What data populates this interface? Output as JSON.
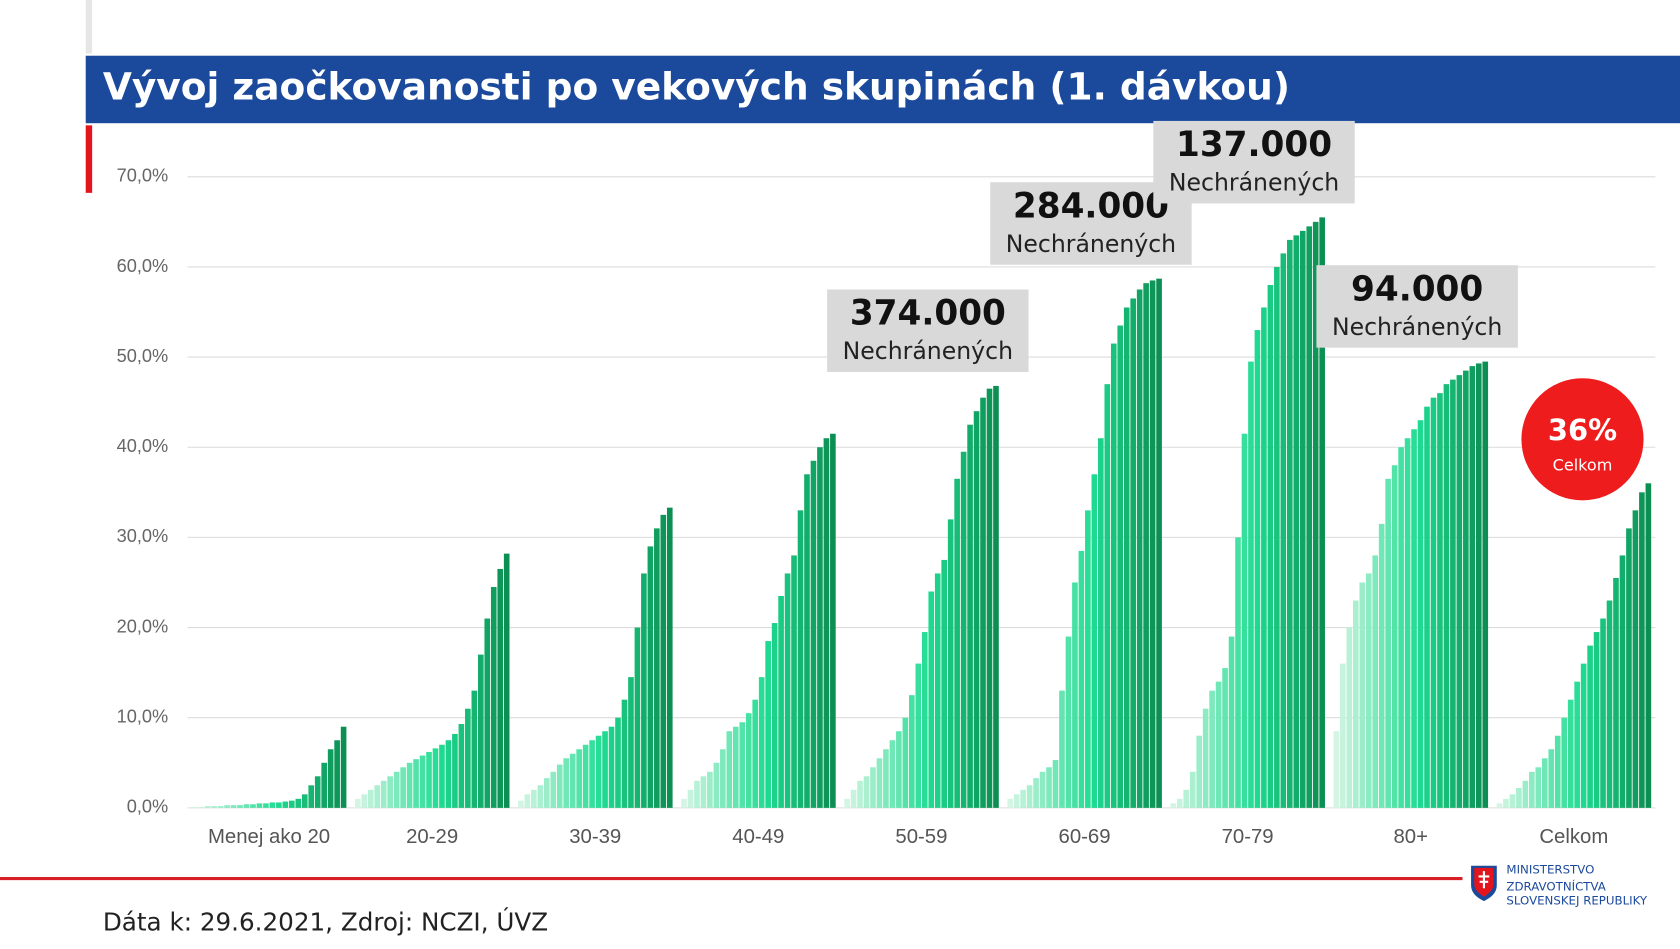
{
  "chart_data": {
    "type": "bar",
    "title": "Vývoj zaočkovanosti po vekových skupinách (1. dávkou)",
    "categories": [
      "Menej ako 20",
      "20-29",
      "30-39",
      "40-49",
      "50-59",
      "60-69",
      "70-79",
      "80+",
      "Celkom"
    ],
    "values": [
      [
        0.1,
        0.1,
        0.2,
        0.2,
        0.2,
        0.3,
        0.3,
        0.3,
        0.4,
        0.4,
        0.5,
        0.5,
        0.6,
        0.6,
        0.7,
        0.8,
        1.0,
        1.5,
        2.5,
        3.5,
        5,
        6.5,
        7.5,
        9.0
      ],
      [
        1,
        1.5,
        2,
        2.5,
        3,
        3.5,
        4,
        4.5,
        5,
        5.4,
        5.8,
        6.2,
        6.6,
        7,
        7.5,
        8.2,
        9.3,
        11,
        13,
        17,
        21,
        24.5,
        26.5,
        28.2
      ],
      [
        0.8,
        1.5,
        2,
        2.5,
        3.3,
        4,
        4.8,
        5.5,
        6,
        6.5,
        7,
        7.5,
        8,
        8.5,
        9,
        10,
        12,
        14.5,
        20,
        26,
        29,
        31,
        32.5,
        33.3
      ],
      [
        1,
        2,
        3,
        3.5,
        4,
        5,
        6.5,
        8.5,
        9,
        9.5,
        10.5,
        12,
        14.5,
        18.5,
        20.5,
        23.5,
        26,
        28,
        33,
        37,
        38.5,
        40,
        41,
        41.5
      ],
      [
        1,
        2,
        3,
        3.5,
        4.5,
        5.5,
        6.5,
        7.5,
        8.5,
        10,
        12.5,
        16,
        19.5,
        24,
        26,
        27.5,
        32,
        36.5,
        39.5,
        42.5,
        44,
        45.5,
        46.5,
        46.8
      ],
      [
        1,
        1.5,
        2,
        2.5,
        3.3,
        4,
        4.5,
        5.3,
        13,
        19,
        25,
        28.5,
        33,
        37,
        41,
        47,
        51.5,
        53.5,
        55.5,
        56.5,
        57.5,
        58.2,
        58.5,
        58.7
      ],
      [
        0.5,
        1,
        2,
        4,
        8,
        11,
        13,
        14,
        15.5,
        19,
        30,
        41.5,
        49.5,
        53,
        55.5,
        58,
        60,
        61.5,
        63,
        63.5,
        64,
        64.5,
        65,
        65.5
      ],
      [
        8.5,
        16,
        20,
        23,
        25,
        26,
        28,
        31.5,
        36.5,
        38,
        40,
        41,
        42,
        43,
        44.5,
        45.5,
        46,
        47,
        47.5,
        48,
        48.5,
        49,
        49.3,
        49.5
      ],
      [
        0.5,
        1,
        1.5,
        2.2,
        3,
        4,
        4.5,
        5.5,
        6.5,
        8,
        10,
        12,
        14,
        16,
        18,
        19.5,
        21,
        23,
        25.5,
        28,
        31,
        33,
        35,
        36
      ]
    ],
    "color_start": "#d4f5e3",
    "color_mid": "#1fdc92",
    "color_end": "#0b8f52",
    "ylim": [
      0,
      70
    ],
    "yticks": [
      {
        "value": 0,
        "label": "0,0%"
      },
      {
        "value": 10,
        "label": "10,0%"
      },
      {
        "value": 20,
        "label": "20,0%"
      },
      {
        "value": 30,
        "label": "30,0%"
      },
      {
        "value": 40,
        "label": "40,0%"
      },
      {
        "value": 50,
        "label": "50,0%"
      },
      {
        "value": 60,
        "label": "60,0%"
      },
      {
        "value": 70,
        "label": "70,0%"
      }
    ],
    "grid": true,
    "annotations": [
      {
        "category": "50-59",
        "label": "374.000",
        "text": "Nechránených"
      },
      {
        "category": "60-69",
        "label": "284.000",
        "text": "Nechránených"
      },
      {
        "category": "70-79",
        "label": "137.000",
        "text": "Nechránených"
      },
      {
        "category": "80+",
        "label": "94.000",
        "text": "Nechránených"
      }
    ],
    "callout": {
      "label": "36%",
      "text": "Celkom"
    }
  },
  "footer": "Dáta k: 29.6.2021, Zdroj: NCZI, ÚVZ",
  "logo": [
    "MINISTERSTVO",
    "ZDRAVOTNÍCTVA",
    "SLOVENSKEJ REPUBLIKY"
  ]
}
